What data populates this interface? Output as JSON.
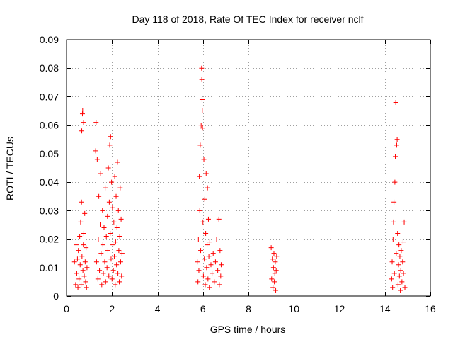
{
  "chart_data": {
    "type": "scatter",
    "title": "Day 118 of 2018, Rate Of TEC Index for receiver nclf",
    "xlabel": "GPS time / hours",
    "ylabel": "ROTI / TECUs",
    "xlim": [
      0,
      16
    ],
    "ylim": [
      0,
      0.09
    ],
    "x_ticks": [
      0,
      2,
      4,
      6,
      8,
      10,
      12,
      14,
      16
    ],
    "y_ticks": [
      0,
      0.01,
      0.02,
      0.03,
      0.04,
      0.05,
      0.06,
      0.07,
      0.08,
      0.09
    ],
    "x_tick_labels": [
      "0",
      "2",
      "4",
      "6",
      "8",
      "10",
      "12",
      "14",
      "16"
    ],
    "y_tick_labels": [
      "0",
      "0.01",
      "0.02",
      "0.03",
      "0.04",
      "0.05",
      "0.06",
      "0.07",
      "0.08",
      "0.09"
    ],
    "grid": true,
    "marker": "+",
    "color": "#ff0000",
    "series": [
      {
        "name": "ROTI",
        "points": [
          [
            0.35,
            0.012
          ],
          [
            0.4,
            0.004
          ],
          [
            0.42,
            0.018
          ],
          [
            0.45,
            0.008
          ],
          [
            0.48,
            0.013
          ],
          [
            0.5,
            0.003
          ],
          [
            0.52,
            0.016
          ],
          [
            0.55,
            0.006
          ],
          [
            0.58,
            0.021
          ],
          [
            0.6,
            0.011
          ],
          [
            0.62,
            0.026
          ],
          [
            0.64,
            0.004
          ],
          [
            0.66,
            0.033
          ],
          [
            0.67,
            0.058
          ],
          [
            0.68,
            0.014
          ],
          [
            0.7,
            0.064
          ],
          [
            0.71,
            0.065
          ],
          [
            0.72,
            0.009
          ],
          [
            0.74,
            0.018
          ],
          [
            0.75,
            0.061
          ],
          [
            0.76,
            0.022
          ],
          [
            0.78,
            0.007
          ],
          [
            0.8,
            0.029
          ],
          [
            0.82,
            0.012
          ],
          [
            0.84,
            0.005
          ],
          [
            0.86,
            0.017
          ],
          [
            0.88,
            0.003
          ],
          [
            0.9,
            0.01
          ],
          [
            1.28,
            0.051
          ],
          [
            1.3,
            0.061
          ],
          [
            1.32,
            0.012
          ],
          [
            1.35,
            0.048
          ],
          [
            1.38,
            0.006
          ],
          [
            1.4,
            0.02
          ],
          [
            1.42,
            0.035
          ],
          [
            1.45,
            0.009
          ],
          [
            1.48,
            0.025
          ],
          [
            1.5,
            0.043
          ],
          [
            1.52,
            0.015
          ],
          [
            1.55,
            0.004
          ],
          [
            1.58,
            0.03
          ],
          [
            1.6,
            0.018
          ],
          [
            1.62,
            0.008
          ],
          [
            1.65,
            0.024
          ],
          [
            1.68,
            0.012
          ],
          [
            1.7,
            0.038
          ],
          [
            1.72,
            0.005
          ],
          [
            1.75,
            0.021
          ],
          [
            1.78,
            0.01
          ],
          [
            1.8,
            0.028
          ],
          [
            1.82,
            0.016
          ],
          [
            1.84,
            0.045
          ],
          [
            1.86,
            0.007
          ],
          [
            1.88,
            0.033
          ],
          [
            1.9,
            0.053
          ],
          [
            1.92,
            0.022
          ],
          [
            1.94,
            0.056
          ],
          [
            1.96,
            0.013
          ],
          [
            1.98,
            0.04
          ],
          [
            2.0,
            0.006
          ],
          [
            2.02,
            0.031
          ],
          [
            2.04,
            0.018
          ],
          [
            2.06,
            0.009
          ],
          [
            2.08,
            0.026
          ],
          [
            2.1,
            0.014
          ],
          [
            2.12,
            0.042
          ],
          [
            2.14,
            0.004
          ],
          [
            2.16,
            0.019
          ],
          [
            2.18,
            0.035
          ],
          [
            2.2,
            0.011
          ],
          [
            2.22,
            0.024
          ],
          [
            2.24,
            0.047
          ],
          [
            2.26,
            0.008
          ],
          [
            2.28,
            0.03
          ],
          [
            2.3,
            0.016
          ],
          [
            2.32,
            0.005
          ],
          [
            2.34,
            0.021
          ],
          [
            2.36,
            0.038
          ],
          [
            2.38,
            0.012
          ],
          [
            2.4,
            0.027
          ],
          [
            2.42,
            0.007
          ],
          [
            2.44,
            0.015
          ],
          [
            5.75,
            0.012
          ],
          [
            5.78,
            0.005
          ],
          [
            5.8,
            0.02
          ],
          [
            5.82,
            0.009
          ],
          [
            5.84,
            0.042
          ],
          [
            5.86,
            0.03
          ],
          [
            5.88,
            0.053
          ],
          [
            5.9,
            0.016
          ],
          [
            5.92,
            0.06
          ],
          [
            5.94,
            0.08
          ],
          [
            5.95,
            0.076
          ],
          [
            5.96,
            0.069
          ],
          [
            5.97,
            0.065
          ],
          [
            5.98,
            0.059
          ],
          [
            6.0,
            0.026
          ],
          [
            6.02,
            0.007
          ],
          [
            6.04,
            0.048
          ],
          [
            6.06,
            0.013
          ],
          [
            6.08,
            0.034
          ],
          [
            6.1,
            0.004
          ],
          [
            6.12,
            0.022
          ],
          [
            6.14,
            0.043
          ],
          [
            6.16,
            0.01
          ],
          [
            6.18,
            0.018
          ],
          [
            6.2,
            0.038
          ],
          [
            6.22,
            0.006
          ],
          [
            6.24,
            0.027
          ],
          [
            6.26,
            0.014
          ],
          [
            6.28,
            0.003
          ],
          [
            6.3,
            0.019
          ],
          [
            6.35,
            0.011
          ],
          [
            6.4,
            0.008
          ],
          [
            6.45,
            0.015
          ],
          [
            6.5,
            0.005
          ],
          [
            6.55,
            0.012
          ],
          [
            6.6,
            0.02
          ],
          [
            6.65,
            0.009
          ],
          [
            6.7,
            0.027
          ],
          [
            6.72,
            0.004
          ],
          [
            6.75,
            0.016
          ],
          [
            6.78,
            0.007
          ],
          [
            6.8,
            0.011
          ],
          [
            9.0,
            0.017
          ],
          [
            9.02,
            0.006
          ],
          [
            9.05,
            0.013
          ],
          [
            9.08,
            0.003
          ],
          [
            9.1,
            0.01
          ],
          [
            9.12,
            0.015
          ],
          [
            9.14,
            0.005
          ],
          [
            9.16,
            0.008
          ],
          [
            9.18,
            0.012
          ],
          [
            9.2,
            0.002
          ],
          [
            9.22,
            0.009
          ],
          [
            9.24,
            0.014
          ],
          [
            14.3,
            0.006
          ],
          [
            14.32,
            0.012
          ],
          [
            14.34,
            0.003
          ],
          [
            14.36,
            0.02
          ],
          [
            14.38,
            0.026
          ],
          [
            14.4,
            0.033
          ],
          [
            14.42,
            0.008
          ],
          [
            14.44,
            0.04
          ],
          [
            14.46,
            0.049
          ],
          [
            14.48,
            0.068
          ],
          [
            14.5,
            0.015
          ],
          [
            14.52,
            0.053
          ],
          [
            14.54,
            0.055
          ],
          [
            14.56,
            0.022
          ],
          [
            14.58,
            0.004
          ],
          [
            14.6,
            0.011
          ],
          [
            14.62,
            0.018
          ],
          [
            14.64,
            0.007
          ],
          [
            14.66,
            0.014
          ],
          [
            14.68,
            0.002
          ],
          [
            14.7,
            0.009
          ],
          [
            14.72,
            0.016
          ],
          [
            14.75,
            0.005
          ],
          [
            14.78,
            0.012
          ],
          [
            14.8,
            0.019
          ],
          [
            14.82,
            0.008
          ],
          [
            14.85,
            0.026
          ],
          [
            14.88,
            0.003
          ]
        ]
      }
    ]
  }
}
